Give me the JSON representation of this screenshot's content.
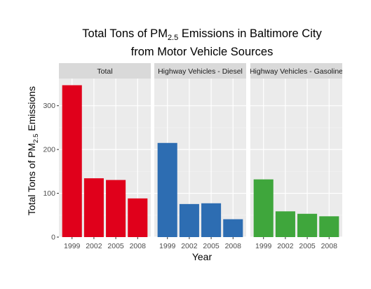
{
  "chart_data": {
    "type": "bar",
    "title": {
      "line1_prefix": "Total Tons of PM",
      "line1_subscript": "2.5",
      "line1_suffix": " Emissions in Baltimore City",
      "line2": "from Motor Vehicle Sources"
    },
    "xlabel": "Year",
    "ylabel": {
      "prefix": "Total Tons of PM",
      "subscript": "2.5",
      "suffix": " Emissions"
    },
    "categories": [
      "1999",
      "2002",
      "2005",
      "2008"
    ],
    "ylim": [
      0,
      362
    ],
    "yticks": [
      0,
      100,
      200,
      300
    ],
    "grid": true,
    "legend": "none",
    "panels": [
      {
        "name": "Total",
        "color": "#e0001b",
        "values": [
          346.8,
          134.3,
          130.4,
          88.3
        ]
      },
      {
        "name": "Highway Vehicles - Diesel",
        "color": "#2d6db2",
        "values": [
          215.0,
          75.5,
          77.2,
          40.8
        ]
      },
      {
        "name": "Highway Vehicles - Gasoline",
        "color": "#3fa63c",
        "values": [
          131.8,
          58.8,
          53.2,
          47.5
        ]
      }
    ]
  },
  "colors": {
    "panel_background": "#ebebeb",
    "strip_background": "#d9d9d9",
    "grid_major": "#ffffff",
    "axis_text": "#4d4d4d"
  }
}
